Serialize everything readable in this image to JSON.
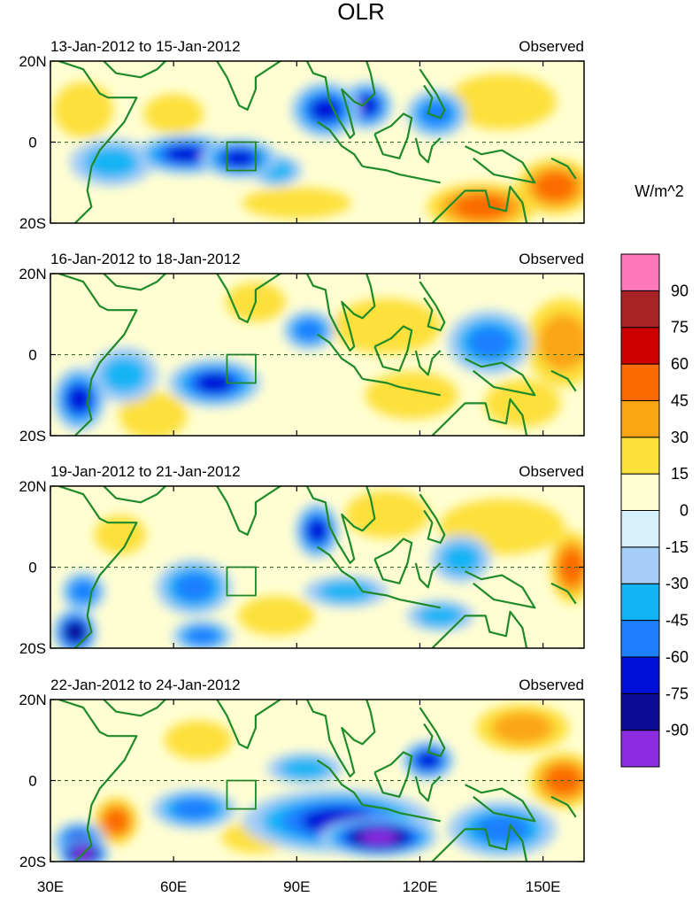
{
  "title": "OLR",
  "units_label": "W/m^2",
  "colors": {
    "coast": "#1f8a2a",
    "equator": "#2a6a2a",
    "frame": "#000000"
  },
  "chart_data": {
    "type": "heatmap",
    "title": "OLR",
    "units": "W/m^2",
    "lon_range": [
      30,
      160
    ],
    "lat_range": [
      -20,
      20
    ],
    "x_ticks": [
      "30E",
      "60E",
      "90E",
      "120E",
      "150E"
    ],
    "x_tick_values": [
      30,
      60,
      90,
      120,
      150
    ],
    "y_ticks": [
      "20N",
      "0",
      "20S"
    ],
    "y_tick_values": [
      20,
      0,
      -20
    ],
    "box_region": {
      "lon": [
        73,
        80
      ],
      "lat": [
        -7,
        0
      ]
    },
    "colorbar": {
      "levels": [
        "-90",
        "-75",
        "-60",
        "-45",
        "-30",
        "-15",
        "0",
        "15",
        "30",
        "45",
        "60",
        "75",
        "90"
      ],
      "colors": [
        "#8b2be2",
        "#0a0a96",
        "#0010d8",
        "#1e7fff",
        "#12b4f5",
        "#a6cdf7",
        "#d6f1fb",
        "#fffed2",
        "#fde03a",
        "#fba612",
        "#fb6a00",
        "#cf0000",
        "#a82424",
        "#ff77bb"
      ]
    },
    "panels": [
      {
        "label": "13-Jan-2012 to 15-Jan-2012",
        "tag": "Observed",
        "blobs": [
          {
            "lon": 97,
            "lat": 8,
            "rx": 7,
            "ry": 6,
            "v": -72
          },
          {
            "lon": 107,
            "lat": 9,
            "rx": 5,
            "ry": 5,
            "v": -60
          },
          {
            "lon": 63,
            "lat": -3,
            "rx": 11,
            "ry": 4,
            "v": -62
          },
          {
            "lon": 76,
            "lat": -4,
            "rx": 8,
            "ry": 4,
            "v": -68
          },
          {
            "lon": 45,
            "lat": -5,
            "rx": 9,
            "ry": 5,
            "v": -38
          },
          {
            "lon": 124,
            "lat": 7,
            "rx": 6,
            "ry": 5,
            "v": -55
          },
          {
            "lon": 85,
            "lat": -7,
            "rx": 5,
            "ry": 3,
            "v": -40
          },
          {
            "lon": 60,
            "lat": 7,
            "rx": 6,
            "ry": 4,
            "v": 22
          },
          {
            "lon": 135,
            "lat": -16,
            "rx": 12,
            "ry": 5,
            "v": 52
          },
          {
            "lon": 153,
            "lat": -11,
            "rx": 8,
            "ry": 6,
            "v": 48
          },
          {
            "lon": 140,
            "lat": 10,
            "rx": 12,
            "ry": 6,
            "v": 20
          },
          {
            "lon": 90,
            "lat": -15,
            "rx": 12,
            "ry": 3,
            "v": 22
          },
          {
            "lon": 38,
            "lat": 8,
            "rx": 6,
            "ry": 6,
            "v": 20
          }
        ]
      },
      {
        "label": "16-Jan-2012 to 18-Jan-2012",
        "tag": "Observed",
        "blobs": [
          {
            "lon": 70,
            "lat": -7,
            "rx": 10,
            "ry": 5,
            "v": -72
          },
          {
            "lon": 37,
            "lat": -11,
            "rx": 5,
            "ry": 7,
            "v": -62
          },
          {
            "lon": 93,
            "lat": 6,
            "rx": 5,
            "ry": 4,
            "v": -55
          },
          {
            "lon": 137,
            "lat": 3,
            "rx": 9,
            "ry": 7,
            "v": -45
          },
          {
            "lon": 48,
            "lat": -5,
            "rx": 7,
            "ry": 6,
            "v": -30
          },
          {
            "lon": 112,
            "lat": 7,
            "rx": 12,
            "ry": 6,
            "v": 28
          },
          {
            "lon": 155,
            "lat": 3,
            "rx": 8,
            "ry": 10,
            "v": 42
          },
          {
            "lon": 118,
            "lat": -10,
            "rx": 10,
            "ry": 5,
            "v": 25
          },
          {
            "lon": 55,
            "lat": -15,
            "rx": 7,
            "ry": 5,
            "v": 22
          },
          {
            "lon": 145,
            "lat": -12,
            "rx": 8,
            "ry": 5,
            "v": 22
          },
          {
            "lon": 80,
            "lat": 13,
            "rx": 6,
            "ry": 4,
            "v": 18
          }
        ]
      },
      {
        "label": "19-Jan-2012 to 21-Jan-2012",
        "tag": "Observed",
        "blobs": [
          {
            "lon": 95,
            "lat": 9,
            "rx": 4,
            "ry": 6,
            "v": -65
          },
          {
            "lon": 65,
            "lat": -5,
            "rx": 8,
            "ry": 6,
            "v": -52
          },
          {
            "lon": 36,
            "lat": -16,
            "rx": 4,
            "ry": 5,
            "v": -75
          },
          {
            "lon": 38,
            "lat": -6,
            "rx": 4,
            "ry": 4,
            "v": -50
          },
          {
            "lon": 67,
            "lat": -17,
            "rx": 6,
            "ry": 3,
            "v": -55
          },
          {
            "lon": 102,
            "lat": -6,
            "rx": 9,
            "ry": 3,
            "v": -40
          },
          {
            "lon": 130,
            "lat": 2,
            "rx": 6,
            "ry": 5,
            "v": -35
          },
          {
            "lon": 125,
            "lat": -12,
            "rx": 7,
            "ry": 3,
            "v": -38
          },
          {
            "lon": 140,
            "lat": 10,
            "rx": 14,
            "ry": 6,
            "v": 22
          },
          {
            "lon": 157,
            "lat": 0,
            "rx": 4,
            "ry": 8,
            "v": 48
          },
          {
            "lon": 112,
            "lat": 13,
            "rx": 9,
            "ry": 5,
            "v": 20
          },
          {
            "lon": 85,
            "lat": -12,
            "rx": 8,
            "ry": 4,
            "v": 20
          },
          {
            "lon": 47,
            "lat": 8,
            "rx": 5,
            "ry": 4,
            "v": 18
          }
        ]
      },
      {
        "label": "22-Jan-2012 to 24-Jan-2012",
        "tag": "Observed",
        "blobs": [
          {
            "lon": 110,
            "lat": -14,
            "rx": 13,
            "ry": 4,
            "v": -92
          },
          {
            "lon": 100,
            "lat": -10,
            "rx": 22,
            "ry": 7,
            "v": -68
          },
          {
            "lon": 38,
            "lat": -18,
            "rx": 5,
            "ry": 3,
            "v": -92
          },
          {
            "lon": 37,
            "lat": -15,
            "rx": 5,
            "ry": 4,
            "v": -62
          },
          {
            "lon": 122,
            "lat": 5,
            "rx": 5,
            "ry": 4,
            "v": -68
          },
          {
            "lon": 65,
            "lat": -7,
            "rx": 9,
            "ry": 4,
            "v": -55
          },
          {
            "lon": 140,
            "lat": -12,
            "rx": 12,
            "ry": 6,
            "v": -45
          },
          {
            "lon": 92,
            "lat": 3,
            "rx": 8,
            "ry": 3,
            "v": -35
          },
          {
            "lon": 155,
            "lat": 0,
            "rx": 7,
            "ry": 6,
            "v": 52
          },
          {
            "lon": 145,
            "lat": 13,
            "rx": 10,
            "ry": 5,
            "v": 30
          },
          {
            "lon": 46,
            "lat": -10,
            "rx": 4,
            "ry": 5,
            "v": 45
          },
          {
            "lon": 66,
            "lat": 10,
            "rx": 7,
            "ry": 4,
            "v": 18
          },
          {
            "lon": 80,
            "lat": -14,
            "rx": 7,
            "ry": 3,
            "v": 15
          }
        ]
      }
    ]
  }
}
